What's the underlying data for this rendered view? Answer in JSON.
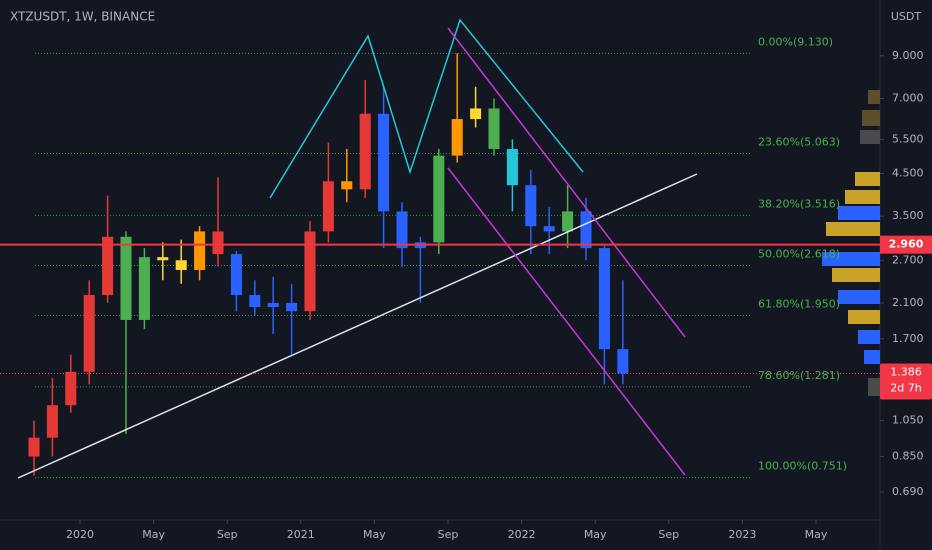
{
  "chart_data": {
    "type": "candlestick",
    "title": "XTZUSDT, 1W, BINANCE",
    "y_axis_label": "USDT",
    "log_scale": true,
    "ylim": [
      0.585,
      12.5
    ],
    "yticks": [
      {
        "value": 9,
        "label": "9.000"
      },
      {
        "value": 7,
        "label": "7.000"
      },
      {
        "value": 5.5,
        "label": "5.500"
      },
      {
        "value": 4.5,
        "label": "4.500"
      },
      {
        "value": 3.5,
        "label": "3.500"
      },
      {
        "value": 2.7,
        "label": "2.700"
      },
      {
        "value": 2.1,
        "label": "2.100"
      },
      {
        "value": 1.7,
        "label": "1.700"
      },
      {
        "value": 1.05,
        "label": "1.050"
      },
      {
        "value": 0.85,
        "label": "0.850"
      },
      {
        "value": 0.69,
        "label": "0.690"
      }
    ],
    "xticks": [
      {
        "value": "2020-01",
        "label": "2020"
      },
      {
        "value": "2020-05",
        "label": "May"
      },
      {
        "value": "2020-09",
        "label": "Sep"
      },
      {
        "value": "2021-01",
        "label": "2021"
      },
      {
        "value": "2021-05",
        "label": "May"
      },
      {
        "value": "2021-09",
        "label": "Sep"
      },
      {
        "value": "2022-01",
        "label": "2022"
      },
      {
        "value": "2022-05",
        "label": "May"
      },
      {
        "value": "2022-09",
        "label": "Sep"
      },
      {
        "value": "2023-01",
        "label": "2023"
      },
      {
        "value": "2023-05",
        "label": "May"
      }
    ],
    "x": [
      "2019-10",
      "2019-11",
      "2019-12",
      "2020-01",
      "2020-02",
      "2020-03",
      "2020-04",
      "2020-05",
      "2020-06",
      "2020-07",
      "2020-08",
      "2020-09",
      "2020-10",
      "2020-11",
      "2020-12",
      "2021-01",
      "2021-02",
      "2021-03",
      "2021-04",
      "2021-05",
      "2021-06",
      "2021-07",
      "2021-08",
      "2021-09",
      "2021-10",
      "2021-11",
      "2021-12",
      "2022-01",
      "2022-02",
      "2022-03",
      "2022-04",
      "2022-05",
      "2022-06"
    ],
    "open": [
      0.85,
      0.95,
      1.15,
      1.4,
      2.2,
      3.1,
      1.9,
      2.75,
      2.7,
      2.55,
      3.2,
      2.8,
      2.2,
      2.05,
      2.1,
      2.0,
      3.2,
      4.3,
      4.1,
      6.4,
      3.6,
      2.9,
      3.0,
      5.0,
      6.2,
      6.6,
      5.2,
      4.2,
      3.3,
      3.2,
      3.6,
      2.9,
      1.6
    ],
    "high": [
      1.05,
      1.35,
      1.55,
      2.4,
      3.95,
      3.2,
      2.9,
      3.0,
      3.05,
      3.3,
      4.4,
      2.85,
      2.4,
      2.45,
      2.35,
      3.4,
      5.4,
      5.2,
      7.8,
      7.5,
      3.8,
      3.1,
      5.2,
      9.13,
      7.5,
      7.0,
      5.5,
      4.6,
      3.7,
      4.2,
      3.9,
      2.95,
      2.4
    ],
    "low": [
      0.76,
      0.85,
      1.1,
      1.3,
      2.1,
      0.97,
      1.8,
      2.4,
      2.35,
      2.4,
      2.6,
      2.0,
      1.95,
      1.75,
      1.55,
      1.9,
      3.0,
      3.8,
      3.9,
      2.9,
      2.6,
      2.1,
      2.8,
      4.8,
      5.9,
      5.0,
      3.6,
      2.8,
      2.8,
      2.9,
      2.7,
      1.3,
      1.3
    ],
    "close": [
      0.95,
      1.15,
      1.4,
      2.2,
      3.1,
      1.9,
      2.75,
      2.7,
      2.55,
      3.2,
      2.8,
      2.2,
      2.05,
      2.1,
      2.0,
      3.2,
      4.3,
      4.1,
      6.4,
      3.6,
      2.9,
      3.0,
      5.0,
      6.2,
      6.6,
      5.2,
      4.2,
      3.3,
      3.2,
      3.6,
      2.9,
      1.6,
      1.386
    ],
    "colors": [
      "#e53935",
      "#e53935",
      "#e53935",
      "#e53935",
      "#e53935",
      "#4caf50",
      "#4caf50",
      "#fdd835",
      "#fdd835",
      "#ff9800",
      "#e53935",
      "#2962ff",
      "#2962ff",
      "#2962ff",
      "#2962ff",
      "#e53935",
      "#e53935",
      "#ff9800",
      "#e53935",
      "#2962ff",
      "#2962ff",
      "#2962ff",
      "#4caf50",
      "#ff9800",
      "#fdd835",
      "#4caf50",
      "#26c6da",
      "#2962ff",
      "#2962ff",
      "#4caf50",
      "#2962ff",
      "#2962ff",
      "#2962ff"
    ],
    "fib_levels": [
      {
        "label": "0.00%(9.130)",
        "price": 9.13
      },
      {
        "label": "23.60%(5.063)",
        "price": 5.063
      },
      {
        "label": "38.20%(3.516)",
        "price": 3.516
      },
      {
        "label": "50.00%(2.618)",
        "price": 2.618
      },
      {
        "label": "61.80%(1.950)",
        "price": 1.95
      },
      {
        "label": "78.60%(1.281)",
        "price": 1.281
      },
      {
        "label": "100.00%(0.751)",
        "price": 0.751
      }
    ],
    "fib_color": "#4caf50",
    "horizontal_line": {
      "value": 2.96,
      "label": "2.960",
      "color": "#f23645"
    },
    "last_price": {
      "value": 1.386,
      "label": "1.386",
      "countdown": "2d 7h",
      "color": "#f23645"
    }
  }
}
